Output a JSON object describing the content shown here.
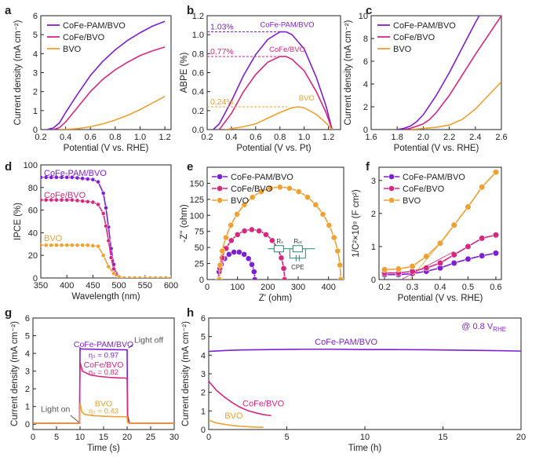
{
  "colors": {
    "purple": "#7e1fd6",
    "magenta": "#d8277f",
    "orange": "#f0a030",
    "axis": "#222222",
    "circuit": "#1a8a7a"
  },
  "chart_data": [
    {
      "panel": "a",
      "type": "line",
      "xlabel": "Potential (V vs. RHE)",
      "ylabel": "Current density (mA cm⁻²)",
      "xlim": [
        0.2,
        1.25
      ],
      "ylim": [
        0,
        6
      ],
      "xticks": [
        "0.2",
        "0.4",
        "0.6",
        "0.8",
        "1.0",
        "1.2"
      ],
      "yticks": [
        "0",
        "1",
        "2",
        "3",
        "4",
        "5",
        "6"
      ],
      "legend": "top-left",
      "grid": false,
      "series": [
        {
          "name": "CoFe-PAM/BVO",
          "color": "purple",
          "x": [
            0.25,
            0.3,
            0.35,
            0.4,
            0.5,
            0.6,
            0.7,
            0.8,
            0.9,
            1.0,
            1.1,
            1.2
          ],
          "y": [
            0.0,
            0.08,
            0.35,
            0.9,
            1.9,
            2.85,
            3.6,
            4.2,
            4.7,
            5.1,
            5.45,
            5.7
          ]
        },
        {
          "name": "CoFe/BVO",
          "color": "magenta",
          "x": [
            0.3,
            0.35,
            0.4,
            0.5,
            0.6,
            0.7,
            0.8,
            0.9,
            1.0,
            1.1,
            1.2
          ],
          "y": [
            0.0,
            0.1,
            0.4,
            1.2,
            2.0,
            2.65,
            3.15,
            3.55,
            3.9,
            4.15,
            4.35
          ]
        },
        {
          "name": "BVO",
          "color": "orange",
          "x": [
            0.35,
            0.5,
            0.6,
            0.7,
            0.8,
            0.9,
            1.0,
            1.1,
            1.2
          ],
          "y": [
            0.0,
            0.05,
            0.15,
            0.3,
            0.5,
            0.75,
            1.05,
            1.4,
            1.75
          ]
        }
      ]
    },
    {
      "panel": "b",
      "type": "line",
      "xlabel": "Potential (V vs. Pt)",
      "ylabel": "ABPE (%)",
      "xlim": [
        0.2,
        1.3
      ],
      "ylim": [
        0,
        1.2
      ],
      "xticks": [
        "0.2",
        "0.4",
        "0.6",
        "0.8",
        "1.0",
        "1.2"
      ],
      "yticks": [
        "0.0",
        "0.2",
        "0.4",
        "0.6",
        "0.8",
        "1.0",
        "1.2"
      ],
      "grid": false,
      "annotations": [
        {
          "text": "1.03%",
          "value": 1.03,
          "color": "purple",
          "label": "CoFe-PAM/BVO"
        },
        {
          "text": "0.77%",
          "value": 0.77,
          "color": "magenta",
          "label": "CoFe/BVO"
        },
        {
          "text": "0.24%",
          "value": 0.24,
          "color": "orange",
          "label": "BVO"
        }
      ],
      "series": [
        {
          "name": "CoFe-PAM/BVO",
          "color": "purple",
          "x": [
            0.25,
            0.3,
            0.4,
            0.5,
            0.6,
            0.7,
            0.8,
            0.85,
            0.9,
            1.0,
            1.1,
            1.18,
            1.23
          ],
          "y": [
            0.0,
            0.06,
            0.3,
            0.57,
            0.79,
            0.95,
            1.03,
            1.03,
            1.0,
            0.85,
            0.55,
            0.25,
            0.0
          ]
        },
        {
          "name": "CoFe/BVO",
          "color": "magenta",
          "x": [
            0.3,
            0.4,
            0.5,
            0.6,
            0.7,
            0.8,
            0.85,
            0.9,
            1.0,
            1.1,
            1.18,
            1.23
          ],
          "y": [
            0.0,
            0.17,
            0.4,
            0.58,
            0.71,
            0.77,
            0.77,
            0.74,
            0.62,
            0.4,
            0.18,
            0.0
          ]
        },
        {
          "name": "BVO",
          "color": "orange",
          "x": [
            0.35,
            0.5,
            0.6,
            0.7,
            0.8,
            0.9,
            0.95,
            1.0,
            1.1,
            1.18,
            1.23
          ],
          "y": [
            0.0,
            0.03,
            0.06,
            0.12,
            0.18,
            0.23,
            0.24,
            0.23,
            0.16,
            0.07,
            0.0
          ]
        }
      ]
    },
    {
      "panel": "c",
      "type": "line",
      "xlabel": "Potential (V vs. RHE)",
      "ylabel": "Current density (mA cm⁻²)",
      "xlim": [
        1.6,
        2.6
      ],
      "ylim": [
        0,
        10
      ],
      "xticks": [
        "1.6",
        "1.8",
        "2.0",
        "2.2",
        "2.4",
        "2.6"
      ],
      "yticks": [
        "0",
        "2",
        "4",
        "6",
        "8",
        "10"
      ],
      "legend": "top-left",
      "grid": false,
      "series": [
        {
          "name": "CoFe-PAM/BVO",
          "color": "purple",
          "x": [
            1.8,
            1.85,
            1.9,
            1.95,
            2.0,
            2.1,
            2.2,
            2.3,
            2.4,
            2.43
          ],
          "y": [
            0.0,
            0.1,
            0.3,
            0.7,
            1.3,
            3.0,
            5.0,
            7.2,
            9.4,
            10.0
          ]
        },
        {
          "name": "CoFe/BVO",
          "color": "magenta",
          "x": [
            1.85,
            1.9,
            2.0,
            2.05,
            2.1,
            2.2,
            2.3,
            2.4,
            2.5,
            2.6
          ],
          "y": [
            0.0,
            0.1,
            0.5,
            0.9,
            1.5,
            3.0,
            4.8,
            6.6,
            8.3,
            10.0
          ]
        },
        {
          "name": "BVO",
          "color": "orange",
          "x": [
            1.9,
            2.0,
            2.1,
            2.2,
            2.3,
            2.4,
            2.5,
            2.6
          ],
          "y": [
            0.0,
            0.1,
            0.2,
            0.4,
            0.9,
            1.8,
            3.0,
            4.2
          ]
        }
      ]
    },
    {
      "panel": "d",
      "type": "line",
      "xlabel": "Wavelength (nm)",
      "ylabel": "IPCE (%)",
      "xlim": [
        350,
        600
      ],
      "ylim": [
        0,
        100
      ],
      "xticks": [
        "350",
        "400",
        "450",
        "500",
        "550",
        "600"
      ],
      "yticks": [
        "0",
        "20",
        "40",
        "60",
        "80",
        "100"
      ],
      "grid": false,
      "series": [
        {
          "name": "CoFe-PAM/BVO",
          "color": "purple",
          "x": [
            350,
            360,
            370,
            380,
            390,
            400,
            410,
            420,
            430,
            440,
            450,
            460,
            470,
            475,
            480,
            485,
            490,
            495,
            500,
            510,
            520,
            530,
            540,
            550,
            560,
            570,
            580,
            590,
            600
          ],
          "y": [
            89,
            89,
            89,
            89,
            89,
            89,
            89,
            88.5,
            88,
            87.5,
            87,
            85,
            75,
            62,
            45,
            26,
            12,
            4,
            1,
            0,
            0,
            0,
            0,
            0,
            0,
            0,
            0,
            0,
            0
          ]
        },
        {
          "name": "CoFe/BVO",
          "color": "magenta",
          "x": [
            350,
            360,
            370,
            380,
            390,
            400,
            410,
            420,
            430,
            440,
            450,
            460,
            470,
            475,
            480,
            485,
            490,
            495,
            500,
            510,
            520,
            530,
            540,
            550,
            560,
            570,
            580,
            590,
            600
          ],
          "y": [
            69,
            69,
            69,
            69,
            69,
            69,
            69,
            68.5,
            68,
            67.5,
            67,
            65,
            57,
            46,
            33,
            18,
            8,
            3,
            1,
            0,
            0,
            0,
            0,
            0,
            0,
            0,
            0,
            0,
            0
          ]
        },
        {
          "name": "BVO",
          "color": "orange",
          "x": [
            350,
            360,
            370,
            380,
            390,
            400,
            410,
            420,
            430,
            440,
            450,
            460,
            470,
            480,
            490,
            500,
            510,
            520,
            530,
            540,
            550,
            560,
            570,
            580,
            590,
            600
          ],
          "y": [
            29,
            29,
            29,
            29,
            29,
            29,
            29,
            29,
            29,
            29,
            28.5,
            28,
            20,
            10,
            4,
            1,
            0,
            0,
            0,
            0,
            0,
            0,
            0,
            0,
            0,
            0
          ]
        }
      ],
      "labels": [
        "CoFe-PAM/BVO",
        "CoFe/BVO",
        "BVO"
      ]
    },
    {
      "panel": "e",
      "type": "scatter",
      "xlabel": "Z' (ohm)",
      "ylabel": "-Z'' (ohm)",
      "xlim": [
        0,
        450
      ],
      "ylim": [
        0,
        175
      ],
      "xticks": [
        "0",
        "100",
        "200",
        "300",
        "400"
      ],
      "yticks": [
        "0",
        "25",
        "50",
        "75",
        "100",
        "125",
        "150"
      ],
      "legend": "top-left",
      "grid": false,
      "inset_labels": [
        "Rₛ",
        "Rₑₜ",
        "CPE"
      ],
      "series": [
        {
          "name": "CoFe-PAM/BVO",
          "color": "purple",
          "center": 97,
          "radius": 60,
          "offset": 37,
          "points": 11
        },
        {
          "name": "CoFe/BVO",
          "color": "magenta",
          "center": 147,
          "radius": 108,
          "offset": 39,
          "points": 14
        },
        {
          "name": "BVO",
          "color": "orange",
          "center": 240,
          "radius": 200,
          "offset": 40,
          "points": 20
        }
      ]
    },
    {
      "panel": "f",
      "type": "line",
      "xlabel": "Potential (V vs. RHE)",
      "ylabel": "1/C²×10⁹ (F cm²)",
      "xlim": [
        0.18,
        0.62
      ],
      "ylim": [
        0,
        3.4
      ],
      "xticks": [
        "0.2",
        "0.3",
        "0.4",
        "0.5",
        "0.6"
      ],
      "yticks": [
        "0",
        "1",
        "2",
        "3"
      ],
      "legend": "top-left",
      "grid": false,
      "series": [
        {
          "name": "CoFe-PAM/BVO",
          "color": "purple",
          "x": [
            0.2,
            0.25,
            0.3,
            0.35,
            0.4,
            0.45,
            0.5,
            0.55,
            0.6
          ],
          "y": [
            0.15,
            0.15,
            0.18,
            0.25,
            0.35,
            0.5,
            0.62,
            0.72,
            0.8
          ]
        },
        {
          "name": "CoFe/BVO",
          "color": "magenta",
          "x": [
            0.2,
            0.25,
            0.3,
            0.35,
            0.4,
            0.45,
            0.5,
            0.55,
            0.6
          ],
          "y": [
            0.2,
            0.2,
            0.25,
            0.35,
            0.5,
            0.75,
            1.0,
            1.25,
            1.35
          ]
        },
        {
          "name": "BVO",
          "color": "orange",
          "x": [
            0.2,
            0.25,
            0.3,
            0.35,
            0.4,
            0.45,
            0.5,
            0.55,
            0.6
          ],
          "y": [
            0.3,
            0.32,
            0.4,
            0.7,
            1.1,
            1.65,
            2.2,
            2.8,
            3.25
          ]
        }
      ]
    },
    {
      "panel": "g",
      "type": "line",
      "xlabel": "Time (s)",
      "ylabel": "Current density (mA cm⁻²)",
      "xlim": [
        0,
        30
      ],
      "ylim": [
        -0.3,
        6
      ],
      "xticks": [
        "0",
        "5",
        "10",
        "15",
        "20",
        "25",
        "30"
      ],
      "yticks": [
        "0",
        "1",
        "2",
        "3",
        "4",
        "5",
        "6"
      ],
      "grid": false,
      "annotations": [
        "Light on",
        "Light off",
        "ηₛ = 0.97",
        "ηₛ = 0.82",
        "ηₛ = 0.43"
      ],
      "series": [
        {
          "name": "CoFe-PAM/BVO",
          "color": "purple",
          "x": [
            0,
            9.9,
            10,
            10.2,
            20,
            20.1,
            20.5,
            30
          ],
          "y": [
            0.05,
            0.05,
            4.3,
            4.25,
            4.2,
            0.5,
            0.05,
            0.05
          ]
        },
        {
          "name": "CoFe/BVO",
          "color": "magenta",
          "x": [
            0,
            9.9,
            10,
            10.5,
            12,
            14,
            16,
            18,
            20,
            20.1,
            20.5,
            30
          ],
          "y": [
            0.05,
            0.05,
            3.5,
            3.0,
            2.8,
            2.7,
            2.65,
            2.62,
            2.6,
            0.3,
            0.05,
            0.05
          ]
        },
        {
          "name": "BVO",
          "color": "orange",
          "x": [
            0,
            9.9,
            10,
            10.4,
            11,
            13,
            15,
            17,
            20,
            20.1,
            20.5,
            30
          ],
          "y": [
            0.05,
            0.05,
            1.2,
            0.7,
            0.55,
            0.48,
            0.45,
            0.43,
            0.42,
            0.1,
            0.05,
            0.05
          ]
        }
      ]
    },
    {
      "panel": "h",
      "type": "line",
      "xlabel": "Time (h)",
      "ylabel": "Current density (mA cm⁻²)",
      "xlim": [
        0,
        20
      ],
      "ylim": [
        0,
        6
      ],
      "xticks": [
        "0",
        "5",
        "10",
        "15",
        "20"
      ],
      "yticks": [
        "0",
        "1",
        "2",
        "3",
        "4",
        "5",
        "6"
      ],
      "grid": false,
      "annotation": "@ 0.8 V",
      "annotation_sub": "RHE",
      "series": [
        {
          "name": "CoFe-PAM/BVO",
          "color": "purple",
          "x": [
            0,
            1,
            2,
            4,
            6,
            8,
            10,
            12,
            14,
            16,
            18,
            20
          ],
          "y": [
            4.2,
            4.25,
            4.28,
            4.3,
            4.32,
            4.32,
            4.3,
            4.3,
            4.29,
            4.27,
            4.25,
            4.22
          ]
        },
        {
          "name": "CoFe/BVO",
          "color": "magenta",
          "x": [
            0,
            0.5,
            1,
            1.5,
            2,
            2.5,
            3,
            3.5,
            4
          ],
          "y": [
            2.6,
            2.1,
            1.75,
            1.45,
            1.2,
            1.02,
            0.9,
            0.8,
            0.75
          ]
        },
        {
          "name": "BVO",
          "color": "orange",
          "x": [
            0,
            0.5,
            1,
            1.5,
            2,
            2.5,
            3,
            3.5
          ],
          "y": [
            0.5,
            0.35,
            0.28,
            0.22,
            0.18,
            0.15,
            0.13,
            0.12
          ]
        }
      ]
    }
  ]
}
